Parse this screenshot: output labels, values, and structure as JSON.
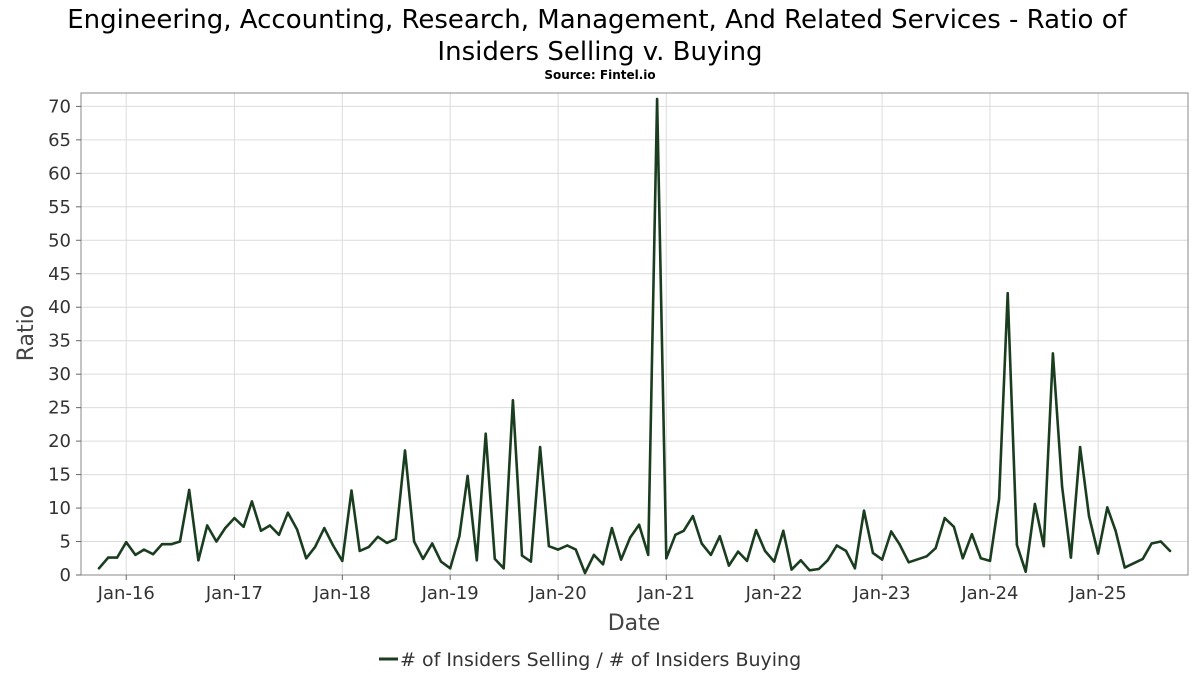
{
  "chart_data": {
    "type": "line",
    "title": "Engineering, Accounting, Research, Management, And Related Services - Ratio of Insiders Selling v. Buying",
    "title_lines": [
      "Engineering, Accounting, Research, Management, And Related Services - Ratio of",
      "Insiders Selling v. Buying"
    ],
    "subtitle": "Source: Fintel.io",
    "xlabel": "Date",
    "ylabel": "Ratio",
    "ylim": [
      0,
      72
    ],
    "yticks": [
      0,
      5,
      10,
      15,
      20,
      25,
      30,
      35,
      40,
      45,
      50,
      55,
      60,
      65,
      70
    ],
    "xlim": [
      "2015-08-01",
      "2025-11-01"
    ],
    "xticks": [
      {
        "date": "2016-01-01",
        "label": "Jan-16"
      },
      {
        "date": "2017-01-01",
        "label": "Jan-17"
      },
      {
        "date": "2018-01-01",
        "label": "Jan-18"
      },
      {
        "date": "2019-01-01",
        "label": "Jan-19"
      },
      {
        "date": "2020-01-01",
        "label": "Jan-20"
      },
      {
        "date": "2021-01-01",
        "label": "Jan-21"
      },
      {
        "date": "2022-01-01",
        "label": "Jan-22"
      },
      {
        "date": "2023-01-01",
        "label": "Jan-23"
      },
      {
        "date": "2024-01-01",
        "label": "Jan-24"
      },
      {
        "date": "2025-01-01",
        "label": "Jan-25"
      }
    ],
    "grid": true,
    "legend_position": "bottom-center",
    "series": [
      {
        "name": "# of Insiders Selling / # of Insiders Buying",
        "color": "#1b3d1f",
        "points": [
          [
            "2015-10-01",
            1.0
          ],
          [
            "2015-11-01",
            2.6
          ],
          [
            "2015-12-01",
            2.6
          ],
          [
            "2016-01-01",
            4.9
          ],
          [
            "2016-02-01",
            3.0
          ],
          [
            "2016-03-01",
            3.8
          ],
          [
            "2016-04-01",
            3.1
          ],
          [
            "2016-05-01",
            4.6
          ],
          [
            "2016-06-01",
            4.6
          ],
          [
            "2016-07-01",
            5.0
          ],
          [
            "2016-08-01",
            12.7
          ],
          [
            "2016-09-01",
            2.2
          ],
          [
            "2016-10-01",
            7.4
          ],
          [
            "2016-11-01",
            5.0
          ],
          [
            "2016-12-01",
            7.0
          ],
          [
            "2017-01-01",
            8.5
          ],
          [
            "2017-02-01",
            7.2
          ],
          [
            "2017-03-01",
            11.0
          ],
          [
            "2017-04-01",
            6.6
          ],
          [
            "2017-05-01",
            7.4
          ],
          [
            "2017-06-01",
            6.0
          ],
          [
            "2017-07-01",
            9.3
          ],
          [
            "2017-08-01",
            6.8
          ],
          [
            "2017-09-01",
            2.5
          ],
          [
            "2017-10-01",
            4.2
          ],
          [
            "2017-11-01",
            7.0
          ],
          [
            "2017-12-01",
            4.4
          ],
          [
            "2018-01-01",
            2.1
          ],
          [
            "2018-02-01",
            12.6
          ],
          [
            "2018-03-01",
            3.6
          ],
          [
            "2018-04-01",
            4.2
          ],
          [
            "2018-05-01",
            5.7
          ],
          [
            "2018-06-01",
            4.8
          ],
          [
            "2018-07-01",
            5.4
          ],
          [
            "2018-08-01",
            18.6
          ],
          [
            "2018-09-01",
            5.0
          ],
          [
            "2018-10-01",
            2.4
          ],
          [
            "2018-11-01",
            4.7
          ],
          [
            "2018-12-01",
            2.0
          ],
          [
            "2019-01-01",
            1.0
          ],
          [
            "2019-02-01",
            5.8
          ],
          [
            "2019-03-01",
            14.8
          ],
          [
            "2019-04-01",
            2.2
          ],
          [
            "2019-05-01",
            21.1
          ],
          [
            "2019-06-01",
            2.4
          ],
          [
            "2019-07-01",
            1.0
          ],
          [
            "2019-08-01",
            26.1
          ],
          [
            "2019-09-01",
            2.9
          ],
          [
            "2019-10-01",
            2.0
          ],
          [
            "2019-11-01",
            19.1
          ],
          [
            "2019-12-01",
            4.3
          ],
          [
            "2020-01-01",
            3.8
          ],
          [
            "2020-02-01",
            4.4
          ],
          [
            "2020-03-01",
            3.8
          ],
          [
            "2020-04-01",
            0.3
          ],
          [
            "2020-05-01",
            3.0
          ],
          [
            "2020-06-01",
            1.6
          ],
          [
            "2020-07-01",
            7.0
          ],
          [
            "2020-08-01",
            2.3
          ],
          [
            "2020-09-01",
            5.6
          ],
          [
            "2020-10-01",
            7.5
          ],
          [
            "2020-11-01",
            3.0
          ],
          [
            "2020-12-01",
            71.1
          ],
          [
            "2021-01-01",
            2.5
          ],
          [
            "2021-02-01",
            6.0
          ],
          [
            "2021-03-01",
            6.6
          ],
          [
            "2021-04-01",
            8.8
          ],
          [
            "2021-05-01",
            4.7
          ],
          [
            "2021-06-01",
            3.0
          ],
          [
            "2021-07-01",
            5.8
          ],
          [
            "2021-08-01",
            1.4
          ],
          [
            "2021-09-01",
            3.5
          ],
          [
            "2021-10-01",
            2.1
          ],
          [
            "2021-11-01",
            6.7
          ],
          [
            "2021-12-01",
            3.6
          ],
          [
            "2022-01-01",
            2.0
          ],
          [
            "2022-02-01",
            6.6
          ],
          [
            "2022-03-01",
            0.8
          ],
          [
            "2022-04-01",
            2.2
          ],
          [
            "2022-05-01",
            0.7
          ],
          [
            "2022-06-01",
            0.9
          ],
          [
            "2022-07-01",
            2.2
          ],
          [
            "2022-08-01",
            4.4
          ],
          [
            "2022-09-01",
            3.6
          ],
          [
            "2022-10-01",
            1.0
          ],
          [
            "2022-11-01",
            9.6
          ],
          [
            "2022-12-01",
            3.3
          ],
          [
            "2023-01-01",
            2.3
          ],
          [
            "2023-02-01",
            6.5
          ],
          [
            "2023-03-01",
            4.6
          ],
          [
            "2023-04-01",
            1.9
          ],
          [
            "2023-06-01",
            2.8
          ],
          [
            "2023-07-01",
            4.0
          ],
          [
            "2023-08-01",
            8.5
          ],
          [
            "2023-09-01",
            7.2
          ],
          [
            "2023-10-01",
            2.5
          ],
          [
            "2023-11-01",
            6.1
          ],
          [
            "2023-12-01",
            2.5
          ],
          [
            "2024-01-01",
            2.1
          ],
          [
            "2024-02-01",
            11.4
          ],
          [
            "2024-03-01",
            42.1
          ],
          [
            "2024-04-01",
            4.5
          ],
          [
            "2024-05-01",
            0.5
          ],
          [
            "2024-06-01",
            10.6
          ],
          [
            "2024-07-01",
            4.3
          ],
          [
            "2024-08-01",
            33.1
          ],
          [
            "2024-09-01",
            13.2
          ],
          [
            "2024-10-01",
            2.6
          ],
          [
            "2024-11-01",
            19.1
          ],
          [
            "2024-12-01",
            8.8
          ],
          [
            "2025-01-01",
            3.2
          ],
          [
            "2025-02-01",
            10.1
          ],
          [
            "2025-03-01",
            6.6
          ],
          [
            "2025-04-01",
            1.1
          ],
          [
            "2025-06-01",
            2.4
          ],
          [
            "2025-07-01",
            4.7
          ],
          [
            "2025-08-01",
            5.0
          ],
          [
            "2025-09-01",
            3.6
          ]
        ]
      }
    ]
  }
}
